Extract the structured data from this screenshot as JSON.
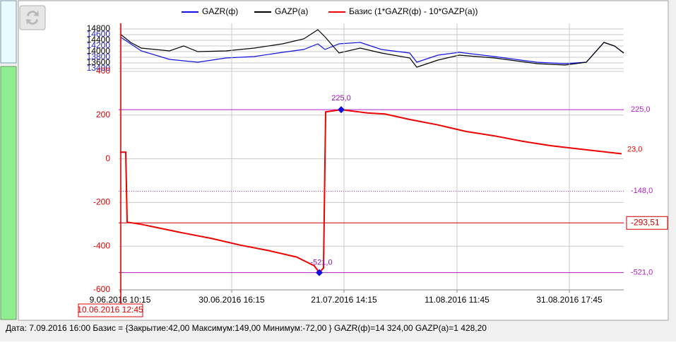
{
  "chart_data": [
    {
      "type": "line",
      "xlim": [
        0,
        715
      ],
      "ylim": [
        13200,
        15000
      ],
      "yticks": [
        13400,
        13600,
        13800,
        14000,
        14200,
        14400,
        14600,
        14800
      ],
      "ytick_colors": [
        "#2020d0",
        "#000000",
        "#2020d0",
        "#000000",
        "#2020d0",
        "#000000",
        "#2020d0",
        "#000000"
      ],
      "grid": true,
      "series": [
        {
          "name": "GAZR(ф)",
          "color": "#1010e0",
          "x": [
            2,
            17,
            32,
            72,
            92,
            112,
            152,
            192,
            232,
            262,
            282,
            292,
            312,
            342,
            372,
            412,
            422,
            452,
            482,
            532,
            592,
            632,
            662,
            687,
            702,
            715
          ],
          "values": [
            14525,
            14275,
            14025,
            13725,
            13675,
            13625,
            13775,
            13825,
            13975,
            14075,
            14275,
            14075,
            14275,
            14325,
            14075,
            13950,
            13625,
            13875,
            13975,
            13825,
            13625,
            13575,
            13625,
            14325,
            14200,
            13950
          ]
        },
        {
          "name": "GAZP(a)",
          "color": "#000000",
          "x": [
            2,
            17,
            32,
            72,
            92,
            112,
            152,
            192,
            232,
            262,
            282,
            292,
            312,
            342,
            372,
            412,
            422,
            452,
            482,
            532,
            592,
            632,
            662,
            687,
            702,
            715
          ],
          "values": [
            14625,
            14325,
            14125,
            14025,
            14200,
            14000,
            14025,
            14125,
            14275,
            14450,
            14775,
            14525,
            13950,
            14125,
            13950,
            13775,
            13450,
            13700,
            13875,
            13775,
            13575,
            13525,
            13625,
            14325,
            14200,
            13950
          ]
        }
      ]
    },
    {
      "type": "line",
      "xlim": [
        0,
        715
      ],
      "ylim": [
        -600,
        400
      ],
      "yticks": [
        -600,
        -400,
        -200,
        0,
        200,
        400
      ],
      "tick_color": "#e00000",
      "xticks": [
        {
          "value": 2,
          "label": "9.06.2016 10:15"
        },
        {
          "value": 160,
          "label": "30.06.2016 16:15"
        },
        {
          "value": 319,
          "label": "21.07.2016 14:15"
        },
        {
          "value": 479,
          "label": "11.08.2016 11:45"
        },
        {
          "value": 638,
          "label": "31.08.2016 17:45"
        }
      ],
      "grid": true,
      "series": [
        {
          "name": "Базис (1*GAZR(ф) - 10*GAZP(a))",
          "color": "#ee0000",
          "x": [
            2,
            10,
            12,
            32,
            62,
            92,
            132,
            172,
            212,
            252,
            277,
            284,
            290,
            293,
            315,
            352,
            377,
            412,
            452,
            492,
            532,
            572,
            612,
            652,
            692,
            712
          ],
          "values": [
            30,
            30,
            -290,
            -300,
            -320,
            -340,
            -365,
            -395,
            -420,
            -450,
            -490,
            -521,
            -500,
            215,
            225,
            210,
            205,
            180,
            155,
            125,
            105,
            80,
            60,
            45,
            30,
            23
          ],
          "end_label": "23,0"
        }
      ],
      "reference_lines": [
        {
          "value": 225,
          "label": "225,0",
          "color": "#b020c0",
          "style": "solid"
        },
        {
          "value": -148,
          "label": "-148,0",
          "color": "#b020c0",
          "style": "dotted"
        },
        {
          "value": -293.51,
          "label": "-293,51",
          "color": "#cc0000",
          "style": "boxed"
        },
        {
          "value": -521,
          "label": "-521,0",
          "color": "#b020c0",
          "style": "solid"
        }
      ],
      "markers": [
        {
          "x": 315,
          "value": 225,
          "label": "225,0"
        },
        {
          "x": 284,
          "value": -521,
          "label": "-521,0"
        }
      ],
      "cursor": {
        "x": 3,
        "label": "10.06.2016 12:45"
      }
    }
  ],
  "status_bar": "Дата: 7.09.2016 16:00   Базис = {Закрытие:42,00 Максимум:149,00 Минимум:-72,00 }   GAZR(ф)=14 324,00   GAZP(a)=1 428,20"
}
